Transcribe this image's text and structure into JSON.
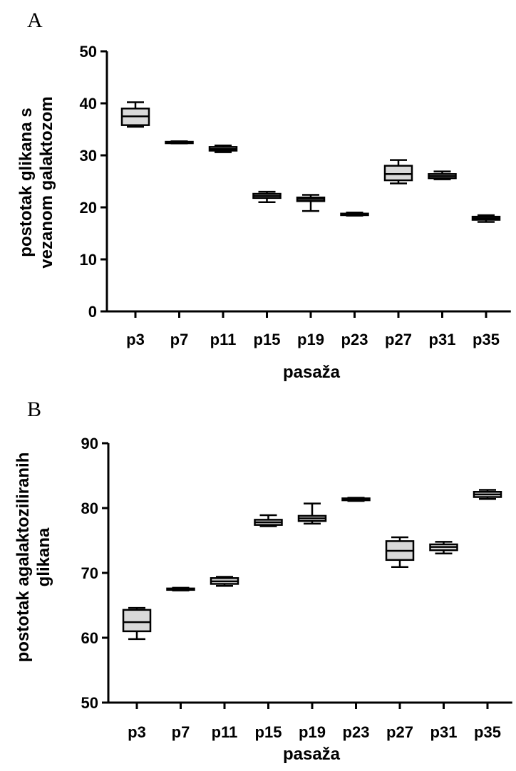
{
  "chart_data": [
    {
      "type": "box",
      "panel_label": "A",
      "xlabel": "pasaža",
      "ylabel_lines": [
        "postotak glikana s",
        "vezanom galaktozom"
      ],
      "ylim": [
        0,
        50
      ],
      "yticks": [
        "0",
        "10",
        "20",
        "30",
        "40",
        "50"
      ],
      "categories": [
        "p3",
        "p7",
        "p11",
        "p15",
        "p19",
        "p23",
        "p27",
        "p31",
        "p35"
      ],
      "boxes": [
        {
          "min": 35.5,
          "q1": 35.8,
          "median": 37.5,
          "q3": 39.0,
          "max": 40.2
        },
        {
          "min": 32.3,
          "q1": 32.4,
          "median": 32.5,
          "q3": 32.6,
          "max": 32.7
        },
        {
          "min": 30.6,
          "q1": 30.9,
          "median": 31.2,
          "q3": 31.6,
          "max": 31.9
        },
        {
          "min": 21.0,
          "q1": 21.8,
          "median": 22.2,
          "q3": 22.6,
          "max": 23.0
        },
        {
          "min": 19.3,
          "q1": 21.2,
          "median": 21.6,
          "q3": 21.9,
          "max": 22.4
        },
        {
          "min": 18.4,
          "q1": 18.5,
          "median": 18.7,
          "q3": 18.8,
          "max": 19.0
        },
        {
          "min": 24.6,
          "q1": 25.2,
          "median": 26.4,
          "q3": 28.0,
          "max": 29.1
        },
        {
          "min": 25.4,
          "q1": 25.6,
          "median": 26.0,
          "q3": 26.4,
          "max": 26.9
        },
        {
          "min": 17.2,
          "q1": 17.6,
          "median": 17.9,
          "q3": 18.2,
          "max": 18.5
        }
      ],
      "box_fill": "#d9d9d9",
      "line_color": "#000000"
    },
    {
      "type": "box",
      "panel_label": "B",
      "xlabel": "pasaža",
      "ylabel_lines": [
        "postotak agalaktoziliranih",
        "glikana"
      ],
      "ylim": [
        50,
        90
      ],
      "yticks": [
        "50",
        "60",
        "70",
        "80",
        "90"
      ],
      "categories": [
        "p3",
        "p7",
        "p11",
        "p15",
        "p19",
        "p23",
        "p27",
        "p31",
        "p35"
      ],
      "boxes": [
        {
          "min": 59.8,
          "q1": 61.0,
          "median": 62.4,
          "q3": 64.3,
          "max": 64.6
        },
        {
          "min": 67.3,
          "q1": 67.4,
          "median": 67.5,
          "q3": 67.6,
          "max": 67.7
        },
        {
          "min": 68.0,
          "q1": 68.3,
          "median": 68.7,
          "q3": 69.2,
          "max": 69.4
        },
        {
          "min": 77.2,
          "q1": 77.4,
          "median": 77.8,
          "q3": 78.2,
          "max": 78.9
        },
        {
          "min": 77.6,
          "q1": 78.0,
          "median": 78.4,
          "q3": 78.8,
          "max": 80.7
        },
        {
          "min": 81.1,
          "q1": 81.2,
          "median": 81.4,
          "q3": 81.5,
          "max": 81.6
        },
        {
          "min": 70.9,
          "q1": 72.0,
          "median": 73.4,
          "q3": 74.9,
          "max": 75.5
        },
        {
          "min": 73.0,
          "q1": 73.5,
          "median": 74.0,
          "q3": 74.4,
          "max": 74.8
        },
        {
          "min": 81.4,
          "q1": 81.7,
          "median": 82.1,
          "q3": 82.5,
          "max": 82.8
        }
      ],
      "box_fill": "#d9d9d9",
      "line_color": "#000000"
    }
  ]
}
